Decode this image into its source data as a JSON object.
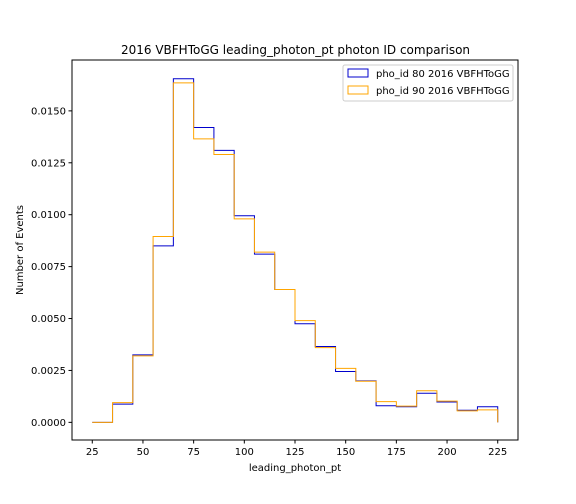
{
  "chart_data": {
    "type": "histogram-step",
    "title": "2016 VBFHToGG leading_photon_pt photon ID comparison",
    "xlabel": "leading_photon_pt",
    "ylabel": "Number of Events",
    "xlim": [
      15,
      235
    ],
    "ylim": [
      -0.00085,
      0.01745
    ],
    "xticks": [
      25,
      50,
      75,
      100,
      125,
      150,
      175,
      200,
      225
    ],
    "xtick_labels": [
      "25",
      "50",
      "75",
      "100",
      "125",
      "150",
      "175",
      "200",
      "225"
    ],
    "yticks": [
      0,
      0.0025,
      0.005,
      0.0075,
      0.01,
      0.0125,
      0.015
    ],
    "ytick_labels": [
      "0.0000",
      "0.0025",
      "0.0050",
      "0.0075",
      "0.0100",
      "0.0125",
      "0.0150"
    ],
    "bin_edges": [
      25,
      35,
      45,
      55,
      65,
      75,
      85,
      95,
      105,
      115,
      125,
      135,
      145,
      155,
      165,
      175,
      185,
      195,
      205,
      215,
      225
    ],
    "legend_position": "top-right",
    "series": [
      {
        "name": "pho_id 80 2016 VBFHToGG",
        "color": "#0000cc",
        "values": [
          0.0,
          0.00088,
          0.00325,
          0.0085,
          0.01655,
          0.0142,
          0.0131,
          0.00995,
          0.0081,
          0.0064,
          0.00475,
          0.00365,
          0.00245,
          0.002,
          0.0008,
          0.00075,
          0.0014,
          0.00098,
          0.00058,
          0.00075
        ]
      },
      {
        "name": "pho_id 90 2016 VBFHToGG",
        "color": "#ffa500",
        "values": [
          0.0,
          0.00095,
          0.0032,
          0.00895,
          0.01635,
          0.01365,
          0.0129,
          0.0098,
          0.0082,
          0.0064,
          0.0049,
          0.0036,
          0.0026,
          0.00198,
          0.001,
          0.00078,
          0.00152,
          0.00102,
          0.00055,
          0.0006
        ]
      }
    ]
  }
}
